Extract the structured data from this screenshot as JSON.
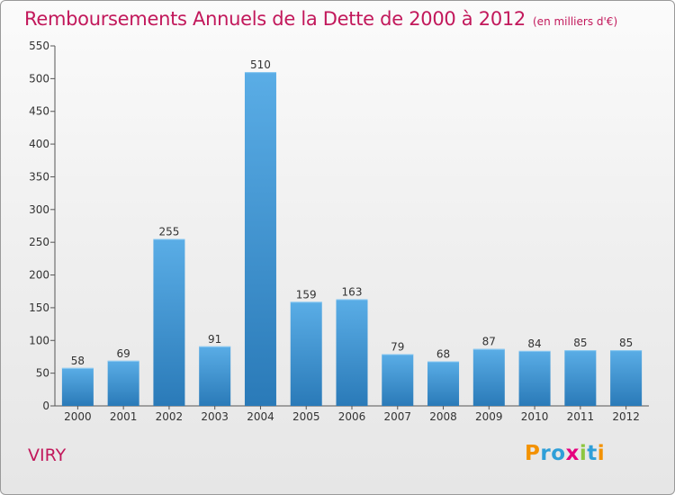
{
  "chart_title": "Remboursements Annuels de la Dette de 2000 à 2012",
  "chart_subtitle": "(en milliers d'€)",
  "commune": "VIRY",
  "logo": {
    "letters": [
      "P",
      "r",
      "o",
      "x",
      "i",
      "t",
      "i"
    ],
    "colors": [
      "#f39200",
      "#2e9fd8",
      "#2e9fd8",
      "#e6007e",
      "#8dc63f",
      "#2e9fd8",
      "#f39200"
    ]
  },
  "colors": {
    "title": "#c2185b",
    "bar_light": "#5aade6",
    "bar_dark": "#2a7ab8"
  },
  "chart_data": {
    "type": "bar",
    "title": "Remboursements Annuels de la Dette de 2000 à 2012",
    "subtitle": "(en milliers d'€)",
    "categories": [
      "2000",
      "2001",
      "2002",
      "2003",
      "2004",
      "2005",
      "2006",
      "2007",
      "2008",
      "2009",
      "2010",
      "2011",
      "2012"
    ],
    "values": [
      58,
      69,
      255,
      91,
      510,
      159,
      163,
      79,
      68,
      87,
      84,
      85,
      85
    ],
    "ylim": [
      0,
      550
    ],
    "yticks": [
      0,
      50,
      100,
      150,
      200,
      250,
      300,
      350,
      400,
      450,
      500,
      550
    ],
    "grid": false,
    "legend": "none"
  }
}
